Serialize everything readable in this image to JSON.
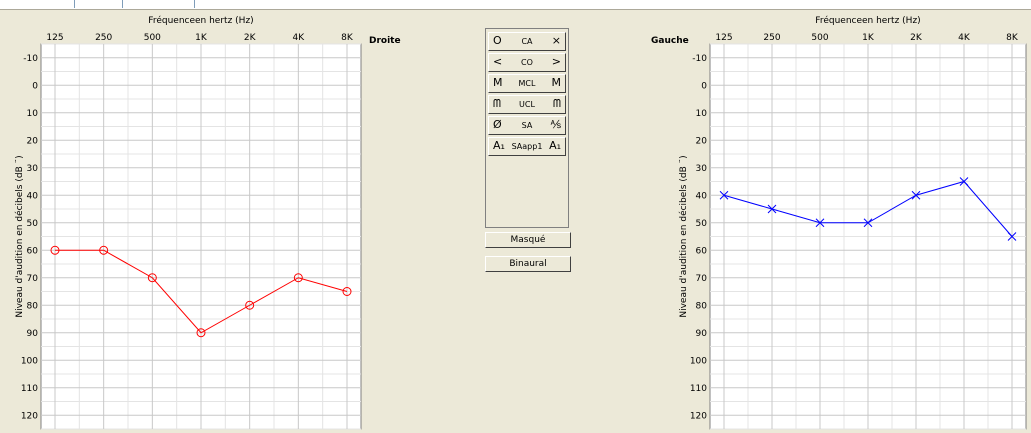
{
  "frequency_axis": {
    "title": "Fréquenceen hertz (Hz)",
    "ticks": [
      "125",
      "250",
      "500",
      "1K",
      "2K",
      "4K",
      "8K"
    ]
  },
  "level_axis": {
    "label": "Niveau d'audition en décibels  (dB ¨)",
    "ticks": [
      "-10",
      "0",
      "10",
      "20",
      "30",
      "40",
      "50",
      "60",
      "70",
      "80",
      "90",
      "100",
      "110",
      "120"
    ]
  },
  "right_ear": {
    "label": "Droite",
    "color": "#ff0000",
    "marker": "circle"
  },
  "left_ear": {
    "label": "Gauche",
    "color": "#0000ff",
    "marker": "cross"
  },
  "symbol_buttons": [
    {
      "left": "O",
      "center": "CA",
      "right": "×"
    },
    {
      "left": "<",
      "center": "CO",
      "right": ">"
    },
    {
      "left": "M",
      "center": "MCL",
      "right": "M"
    },
    {
      "left": "ᗰ",
      "center": "UCL",
      "right": "ᗰ"
    },
    {
      "left": "Ø",
      "center": "SA",
      "right": "⅍"
    },
    {
      "left": "A₁",
      "center": "SAapp1",
      "right": "A₁"
    }
  ],
  "buttons": {
    "masque": "Masqué",
    "binaural": "Binaural"
  },
  "chart_data": [
    {
      "type": "line",
      "title": "Fréquenceen hertz (Hz)",
      "xlabel": "Fréquenceen hertz (Hz)",
      "ylabel": "Niveau d'audition en décibels  (dB ¨)",
      "categories": [
        "125",
        "250",
        "500",
        "1K",
        "2K",
        "4K",
        "8K"
      ],
      "ylim": [
        -15,
        125
      ],
      "y_inverted": true,
      "grid": true,
      "series": [
        {
          "name": "Droite",
          "values": [
            60,
            60,
            70,
            90,
            80,
            70,
            75
          ]
        }
      ]
    },
    {
      "type": "line",
      "title": "Fréquenceen hertz (Hz)",
      "xlabel": "Fréquenceen hertz (Hz)",
      "ylabel": "Niveau d'audition en décibels  (dB ¨)",
      "categories": [
        "125",
        "250",
        "500",
        "1K",
        "2K",
        "4K",
        "8K"
      ],
      "ylim": [
        -15,
        125
      ],
      "y_inverted": true,
      "grid": true,
      "series": [
        {
          "name": "Gauche",
          "values": [
            40,
            45,
            50,
            50,
            40,
            35,
            55
          ]
        }
      ]
    }
  ]
}
